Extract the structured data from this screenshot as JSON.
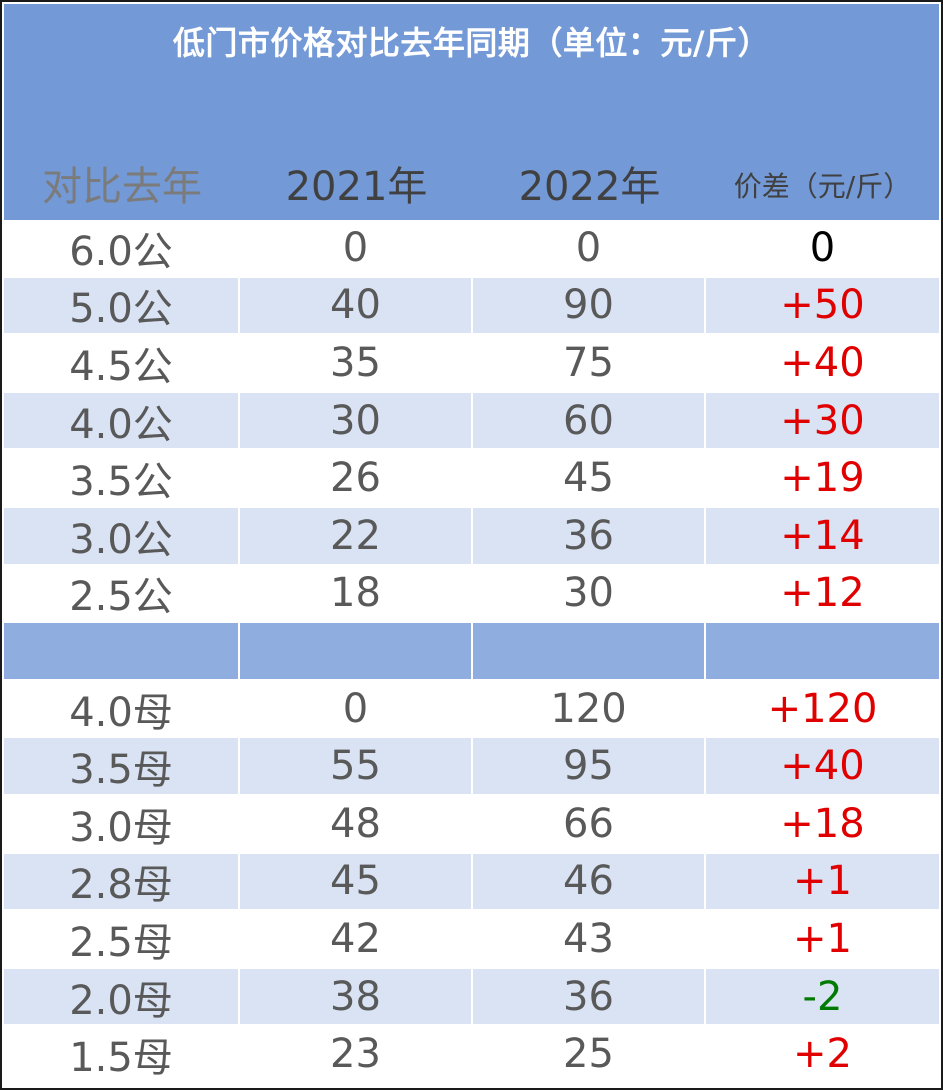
{
  "title": "低门市价格对比去年同期（单位：元/斤）",
  "headers": [
    "对比去年",
    "2021年",
    "2022年",
    "价差（元/斤）"
  ],
  "colors": {
    "header_bg": "#7399d6",
    "row_shade": "#d9e3f4",
    "separator": "#8fadde",
    "increase": "#e00000",
    "decrease": "#007a00"
  },
  "rows": [
    {
      "label": "6.0公",
      "y2021": "0",
      "y2022": "0",
      "diff": "0",
      "sign": "zero"
    },
    {
      "label": "5.0公",
      "y2021": "40",
      "y2022": "90",
      "diff": "+50",
      "sign": "pos"
    },
    {
      "label": "4.5公",
      "y2021": "35",
      "y2022": "75",
      "diff": "+40",
      "sign": "pos"
    },
    {
      "label": "4.0公",
      "y2021": "30",
      "y2022": "60",
      "diff": "+30",
      "sign": "pos"
    },
    {
      "label": "3.5公",
      "y2021": "26",
      "y2022": "45",
      "diff": "+19",
      "sign": "pos"
    },
    {
      "label": "3.0公",
      "y2021": "22",
      "y2022": "36",
      "diff": "+14",
      "sign": "pos"
    },
    {
      "label": "2.5公",
      "y2021": "18",
      "y2022": "30",
      "diff": "+12",
      "sign": "pos"
    },
    {
      "label": "",
      "y2021": "",
      "y2022": "",
      "diff": "",
      "sign": "zero"
    },
    {
      "label": "4.0母",
      "y2021": "0",
      "y2022": "120",
      "diff": "+120",
      "sign": "pos"
    },
    {
      "label": "3.5母",
      "y2021": "55",
      "y2022": "95",
      "diff": "+40",
      "sign": "pos"
    },
    {
      "label": "3.0母",
      "y2021": "48",
      "y2022": "66",
      "diff": "+18",
      "sign": "pos"
    },
    {
      "label": "2.8母",
      "y2021": "45",
      "y2022": "46",
      "diff": "+1",
      "sign": "pos"
    },
    {
      "label": "2.5母",
      "y2021": "42",
      "y2022": "43",
      "diff": "+1",
      "sign": "pos"
    },
    {
      "label": "2.0母",
      "y2021": "38",
      "y2022": "36",
      "diff": "-2",
      "sign": "neg"
    },
    {
      "label": "1.5母",
      "y2021": "23",
      "y2022": "25",
      "diff": "+2",
      "sign": "pos"
    }
  ]
}
